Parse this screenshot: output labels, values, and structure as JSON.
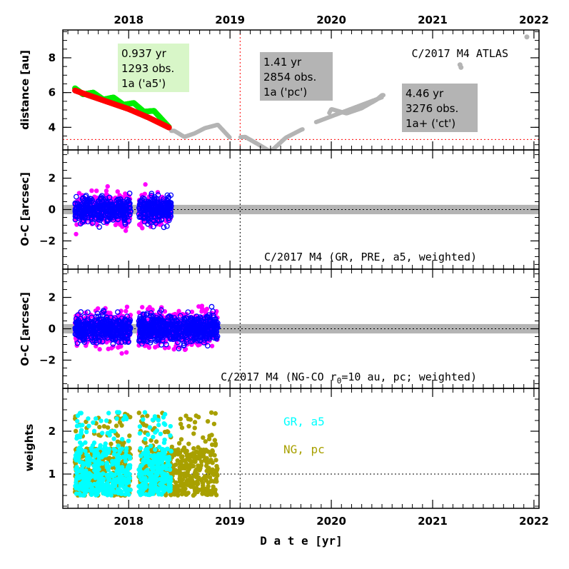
{
  "chart_data": {
    "type": "scatter",
    "figure_title": "C/2017 M4 ATLAS",
    "x_axis": {
      "label": "D a t e [yr]",
      "range": [
        2017.35,
        2022.05
      ],
      "ticks": [
        2018,
        2019,
        2020,
        2021,
        2022
      ],
      "tick_labels": [
        "2018",
        "2019",
        "2020",
        "2021",
        "2022"
      ]
    },
    "perihelion_date": 2019.1,
    "panels": [
      {
        "id": "distance",
        "ylabel": "distance [au]",
        "ylim": [
          2.7,
          9.6
        ],
        "yticks": [
          4,
          6,
          8
        ],
        "ytick_labels": [
          "4",
          "6",
          "8"
        ],
        "perihelion_distance_au": 3.3,
        "title": "C/2017 M4 ATLAS",
        "annotations": [
          {
            "lines": [
              "0.937 yr",
              "1293 obs.",
              "1a ('a5')"
            ],
            "style": "green-box"
          },
          {
            "lines": [
              "1.41 yr",
              "2854 obs.",
              "1a ('pc')"
            ],
            "style": "grey-box"
          },
          {
            "lines": [
              "4.46 yr",
              "3276 obs.",
              "1a+ ('ct')"
            ],
            "style": "grey-box"
          }
        ],
        "series": [
          {
            "name": "heliocentric distance (fit a5)",
            "color": "#ff0000",
            "points": [
              [
                2017.47,
                6.12
              ],
              [
                2017.6,
                5.85
              ],
              [
                2017.8,
                5.45
              ],
              [
                2018.0,
                5.05
              ],
              [
                2018.2,
                4.55
              ],
              [
                2018.4,
                3.98
              ]
            ]
          },
          {
            "name": "geocentric distance (a5 arc)",
            "color": "#00ee00",
            "points": [
              [
                2017.47,
                6.25
              ],
              [
                2017.55,
                5.9
              ],
              [
                2017.65,
                6.0
              ],
              [
                2017.75,
                5.6
              ],
              [
                2017.85,
                5.72
              ],
              [
                2017.95,
                5.3
              ],
              [
                2018.05,
                5.4
              ],
              [
                2018.15,
                4.9
              ],
              [
                2018.25,
                4.95
              ],
              [
                2018.4,
                4.0
              ]
            ]
          },
          {
            "name": "observed arc beyond a5",
            "color": "#b4b4b4",
            "points": [
              [
                2018.45,
                3.8
              ],
              [
                2018.55,
                3.45
              ],
              [
                2018.65,
                3.65
              ],
              [
                2018.75,
                3.95
              ],
              [
                2018.88,
                4.15
              ],
              [
                2019.0,
                3.4
              ],
              [
                2019.15,
                3.45
              ],
              [
                2019.3,
                2.95
              ],
              [
                2019.4,
                2.6
              ],
              [
                2019.55,
                3.4
              ],
              [
                2019.7,
                3.85
              ],
              [
                2019.85,
                4.2
              ],
              [
                2019.95,
                4.5
              ],
              [
                2020.0,
                5.05
              ],
              [
                2020.15,
                4.8
              ],
              [
                2020.3,
                5.1
              ],
              [
                2020.45,
                5.6
              ],
              [
                2020.5,
                5.85
              ],
              [
                2021.27,
                7.6
              ],
              [
                2021.93,
                9.2
              ]
            ]
          }
        ]
      },
      {
        "id": "oc_gr",
        "ylabel": "O-C [arcsec]",
        "ylim": [
          -3.8,
          3.8
        ],
        "yticks": [
          -2,
          0,
          2
        ],
        "ytick_labels": [
          "−2",
          "0",
          "2"
        ],
        "title": "C/2017 M4 (GR, PRE, a5, weighted)",
        "data_span": [
          2017.47,
          2018.42
        ],
        "data_gap": [
          2018.02,
          2018.1
        ],
        "scatter_sigma_arcsec": 0.45,
        "series": [
          {
            "name": "RA residuals",
            "color": "#ff00ff",
            "marker": "filled"
          },
          {
            "name": "Dec residuals",
            "color": "#0000ff",
            "marker": "open"
          }
        ]
      },
      {
        "id": "oc_ng",
        "ylabel": "O-C [arcsec]",
        "ylim": [
          -3.8,
          3.8
        ],
        "yticks": [
          -2,
          0,
          2
        ],
        "ytick_labels": [
          "−2",
          "0",
          "2"
        ],
        "title_prefix": "C/2017 M4 (NG-CO r",
        "title_subscript": "0",
        "title_suffix": "=10 au, pc; weighted)",
        "data_span": [
          2017.47,
          2018.88
        ],
        "data_gap": [
          2018.02,
          2018.1
        ],
        "scatter_sigma_arcsec": 0.5,
        "series": [
          {
            "name": "RA residuals",
            "color": "#ff00ff",
            "marker": "filled"
          },
          {
            "name": "Dec residuals",
            "color": "#0000ff",
            "marker": "open"
          }
        ]
      },
      {
        "id": "weights",
        "ylabel": "weights",
        "ylim": [
          0.2,
          3.0
        ],
        "yticks": [
          1,
          2
        ],
        "ytick_labels": [
          "1",
          "2"
        ],
        "reference_line": 1,
        "series": [
          {
            "name": "NG, pc",
            "color": "#a8a000",
            "span": [
              2017.47,
              2018.88
            ]
          },
          {
            "name": "GR, a5",
            "color": "#00ffff",
            "span": [
              2017.47,
              2018.42
            ]
          }
        ]
      }
    ],
    "legend": [
      {
        "label": "GR, a5",
        "color": "#00ffff"
      },
      {
        "label": "NG, pc",
        "color": "#a8a000"
      }
    ]
  }
}
